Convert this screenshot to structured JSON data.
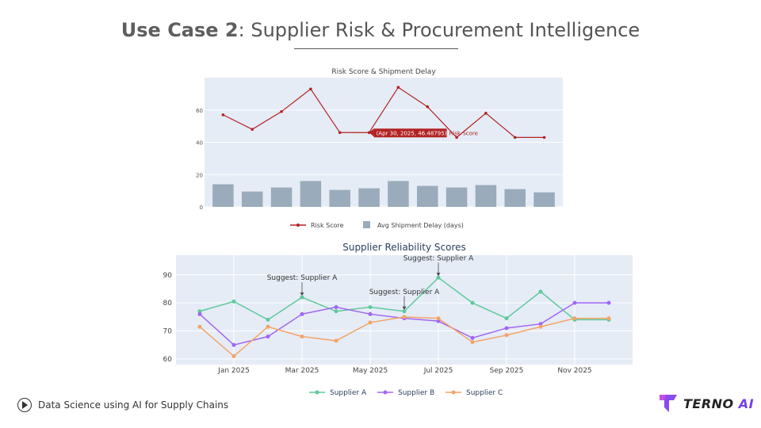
{
  "slide": {
    "title_bold": "Use Case 2",
    "title_rest": ": Supplier Risk & Procurement Intelligence",
    "footer_text": "Data Science using AI for Supply Chains",
    "footer_icon": "play-circle-icon",
    "logo_text_main": "TERNO",
    "logo_text_accent": "AI"
  },
  "chart_data": [
    {
      "type": "bar",
      "title": "Risk Score & Shipment Delay",
      "ylim": [
        0,
        80
      ],
      "yticks": [
        "0",
        "20",
        "40",
        "60"
      ],
      "grid": true,
      "legend_position": "bottom",
      "categories_count": 12,
      "series": [
        {
          "name": "Risk Score",
          "type": "line",
          "color": "#b22222",
          "values": [
            57,
            48,
            59,
            73,
            46,
            46,
            74,
            62,
            43,
            58,
            43,
            43
          ]
        },
        {
          "name": "Avg Shipment Delay (days)",
          "type": "bar",
          "color": "#9aabbb",
          "values": [
            14,
            9.5,
            12,
            16,
            10.5,
            11.5,
            16,
            13,
            12,
            13.5,
            11,
            9
          ]
        }
      ],
      "tooltip": {
        "text": "(Apr 30, 2025, 46.48795)",
        "series_label": "Risk Score"
      }
    },
    {
      "type": "line",
      "title": "Supplier Reliability Scores",
      "ylim": [
        58,
        97
      ],
      "yticks": [
        "60",
        "70",
        "80",
        "90"
      ],
      "xticks": [
        "Jan 2025",
        "Mar 2025",
        "May 2025",
        "Jul 2025",
        "Sep 2025",
        "Nov 2025"
      ],
      "grid": true,
      "legend_position": "bottom",
      "x": [
        "Nov 30, 2024",
        "Dec 31, 2024",
        "Jan 31, 2025",
        "Feb 28, 2025",
        "Mar 31, 2025",
        "Apr 30, 2025",
        "May 31, 2025",
        "Jun 30, 2025",
        "Jul 31, 2025",
        "Aug 31, 2025",
        "Sep 30, 2025",
        "Oct 31, 2025",
        "Nov 30, 2025"
      ],
      "series": [
        {
          "name": "Supplier A",
          "color": "#5fc99b",
          "values": [
            77,
            80.5,
            74,
            82,
            77,
            78.5,
            77,
            89,
            80,
            74.5,
            84,
            74,
            74
          ]
        },
        {
          "name": "Supplier B",
          "color": "#a166f2",
          "values": [
            76,
            65,
            68,
            76,
            78.5,
            76,
            74.5,
            73.5,
            67.5,
            71,
            72.5,
            80,
            80
          ]
        },
        {
          "name": "Supplier C",
          "color": "#f4a467",
          "values": [
            71.5,
            61,
            71.5,
            68,
            66.5,
            73,
            75,
            74.5,
            66,
            68.5,
            71.5,
            74.5,
            74.5
          ]
        }
      ],
      "annotations": [
        {
          "text": "Suggest: Supplier A",
          "point_index": 3
        },
        {
          "text": "Suggest: Supplier A",
          "point_index": 6
        },
        {
          "text": "Suggest: Supplier A",
          "point_index": 7
        }
      ]
    }
  ]
}
